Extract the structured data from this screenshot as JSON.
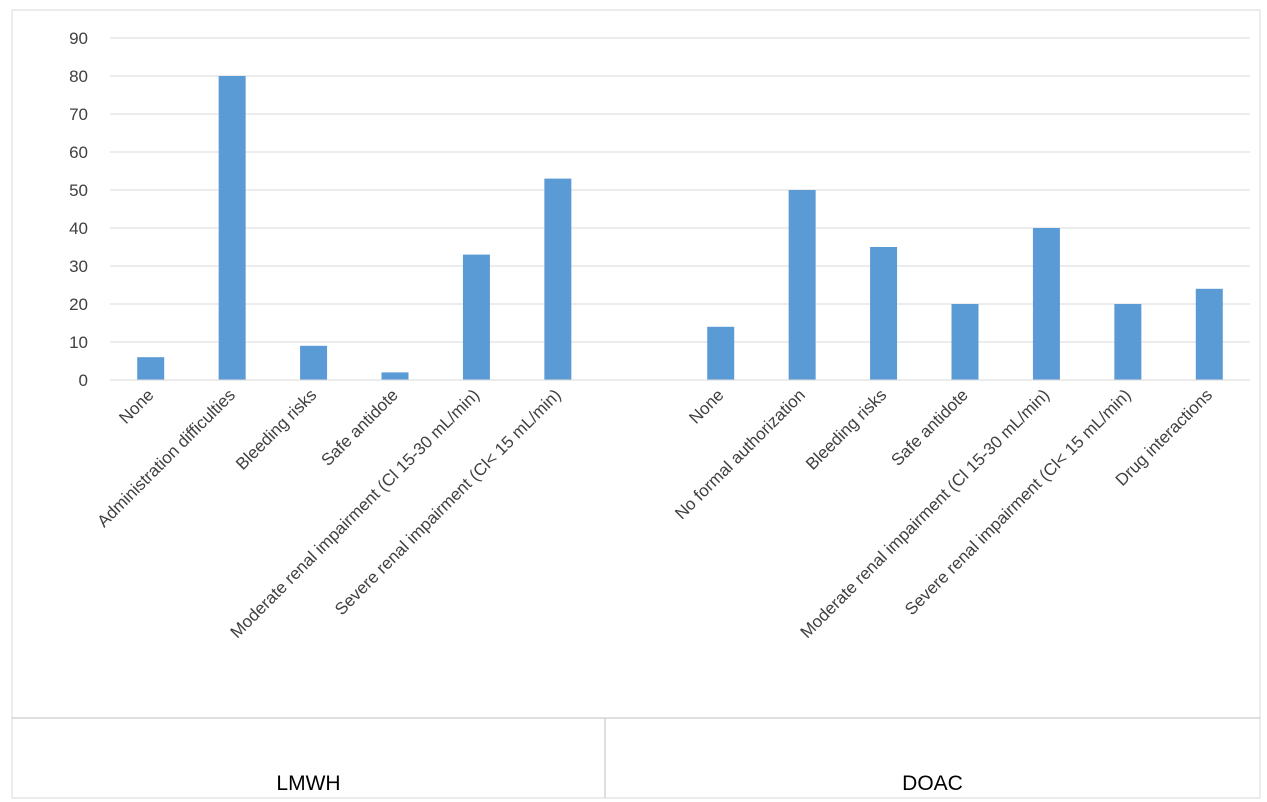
{
  "chart_data": {
    "type": "bar",
    "title": "",
    "xlabel": "",
    "ylabel": "",
    "ylim": [
      0,
      90
    ],
    "yticks": [
      0,
      10,
      20,
      30,
      40,
      50,
      60,
      70,
      80,
      90
    ],
    "grid": true,
    "legend": "none",
    "bar_color": "#5b9bd5",
    "groups": [
      {
        "name": "LMWH",
        "categories": [
          "None",
          "Administration difficulties",
          "Bleeding risks",
          "Safe antidote",
          "Moderate renal impairment (Cl 15-30 mL/min)",
          "Severe renal impairment (Cl< 15 mL/min)",
          ""
        ],
        "values": [
          6,
          80,
          9,
          2,
          33,
          53,
          null
        ]
      },
      {
        "name": "DOAC",
        "categories": [
          "None",
          "No formal authorization",
          "Bleeding risks",
          "Safe antidote",
          "Moderate renal impairment (Cl 15-30 mL/min)",
          "Severe renal impairment (Cl< 15 mL/min)",
          "Drug interactions"
        ],
        "values": [
          14,
          50,
          35,
          20,
          40,
          20,
          24
        ]
      }
    ]
  }
}
